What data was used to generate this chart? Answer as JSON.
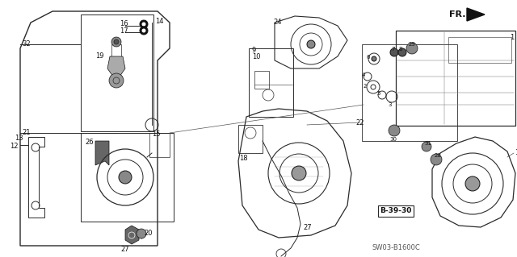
{
  "background_color": "#ffffff",
  "diagram_code": "SW03-B1600C",
  "fig_width": 6.4,
  "fig_height": 3.19,
  "dpi": 100
}
